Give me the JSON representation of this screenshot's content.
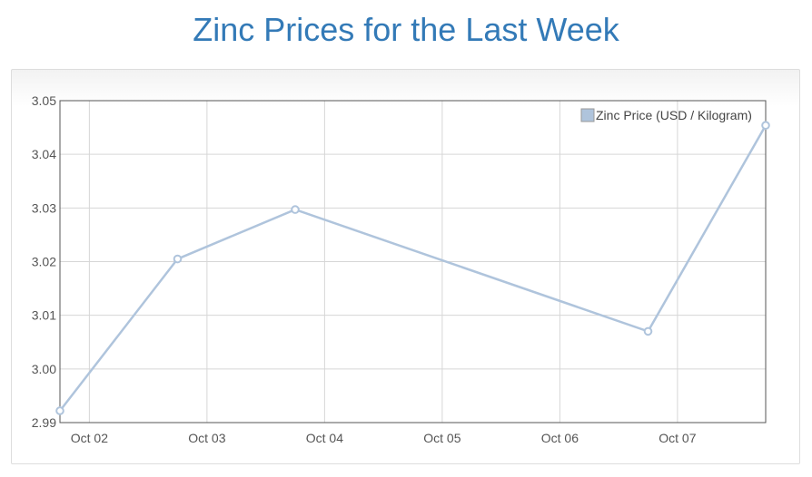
{
  "title": "Zinc Prices for the Last Week",
  "chart_data": {
    "type": "line",
    "title": "Zinc Prices for the Last Week",
    "xlabel": "",
    "ylabel": "",
    "x_ticks": [
      "Oct 02",
      "Oct 03",
      "Oct 04",
      "Oct 05",
      "Oct 06",
      "Oct 07"
    ],
    "ylim": [
      2.99,
      3.05
    ],
    "y_ticks": [
      "2.99",
      "3.00",
      "3.01",
      "3.02",
      "3.03",
      "3.04",
      "3.05"
    ],
    "grid": true,
    "legend_position": "top-right",
    "series": [
      {
        "name": "Zinc Price (USD / Kilogram)",
        "color": "#afc4dc",
        "points": [
          {
            "x": "2014-10-01T18:00",
            "y": 2.9922
          },
          {
            "x": "2014-10-02T18:00",
            "y": 3.0205
          },
          {
            "x": "2014-10-03T18:00",
            "y": 3.0297
          },
          {
            "x": "2014-10-06T18:00",
            "y": 3.007
          },
          {
            "x": "2014-10-07T18:00",
            "y": 3.0454
          }
        ]
      }
    ]
  }
}
